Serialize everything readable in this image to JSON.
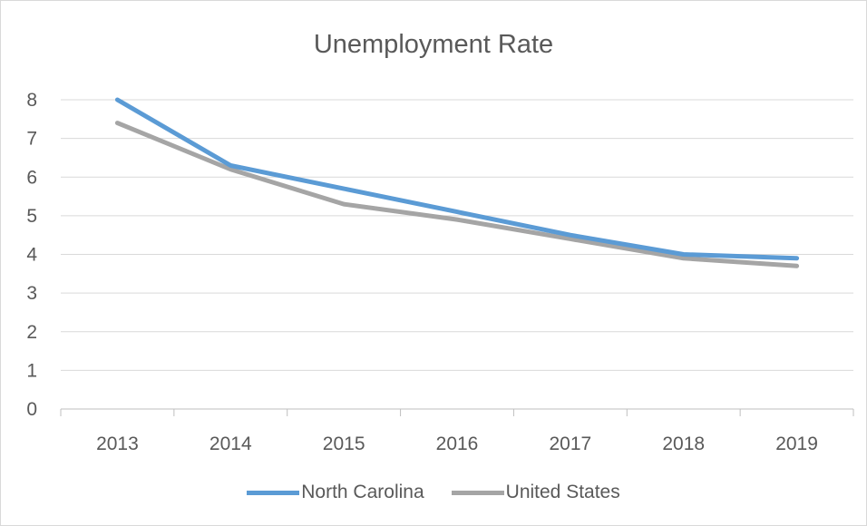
{
  "chart_data": {
    "type": "line",
    "title": "Unemployment Rate",
    "xlabel": "",
    "ylabel": "",
    "categories": [
      "2013",
      "2014",
      "2015",
      "2016",
      "2017",
      "2018",
      "2019"
    ],
    "ylim": [
      0,
      8
    ],
    "yticks": [
      "0",
      "1",
      "2",
      "3",
      "4",
      "5",
      "6",
      "7",
      "8"
    ],
    "grid": true,
    "legend_position": "bottom",
    "series": [
      {
        "name": "North Carolina",
        "color": "#5b9bd5",
        "values": [
          8.0,
          6.3,
          5.7,
          5.1,
          4.5,
          4.0,
          3.9
        ]
      },
      {
        "name": "United States",
        "color": "#a5a5a5",
        "values": [
          7.4,
          6.2,
          5.3,
          4.9,
          4.4,
          3.9,
          3.7
        ]
      }
    ]
  }
}
